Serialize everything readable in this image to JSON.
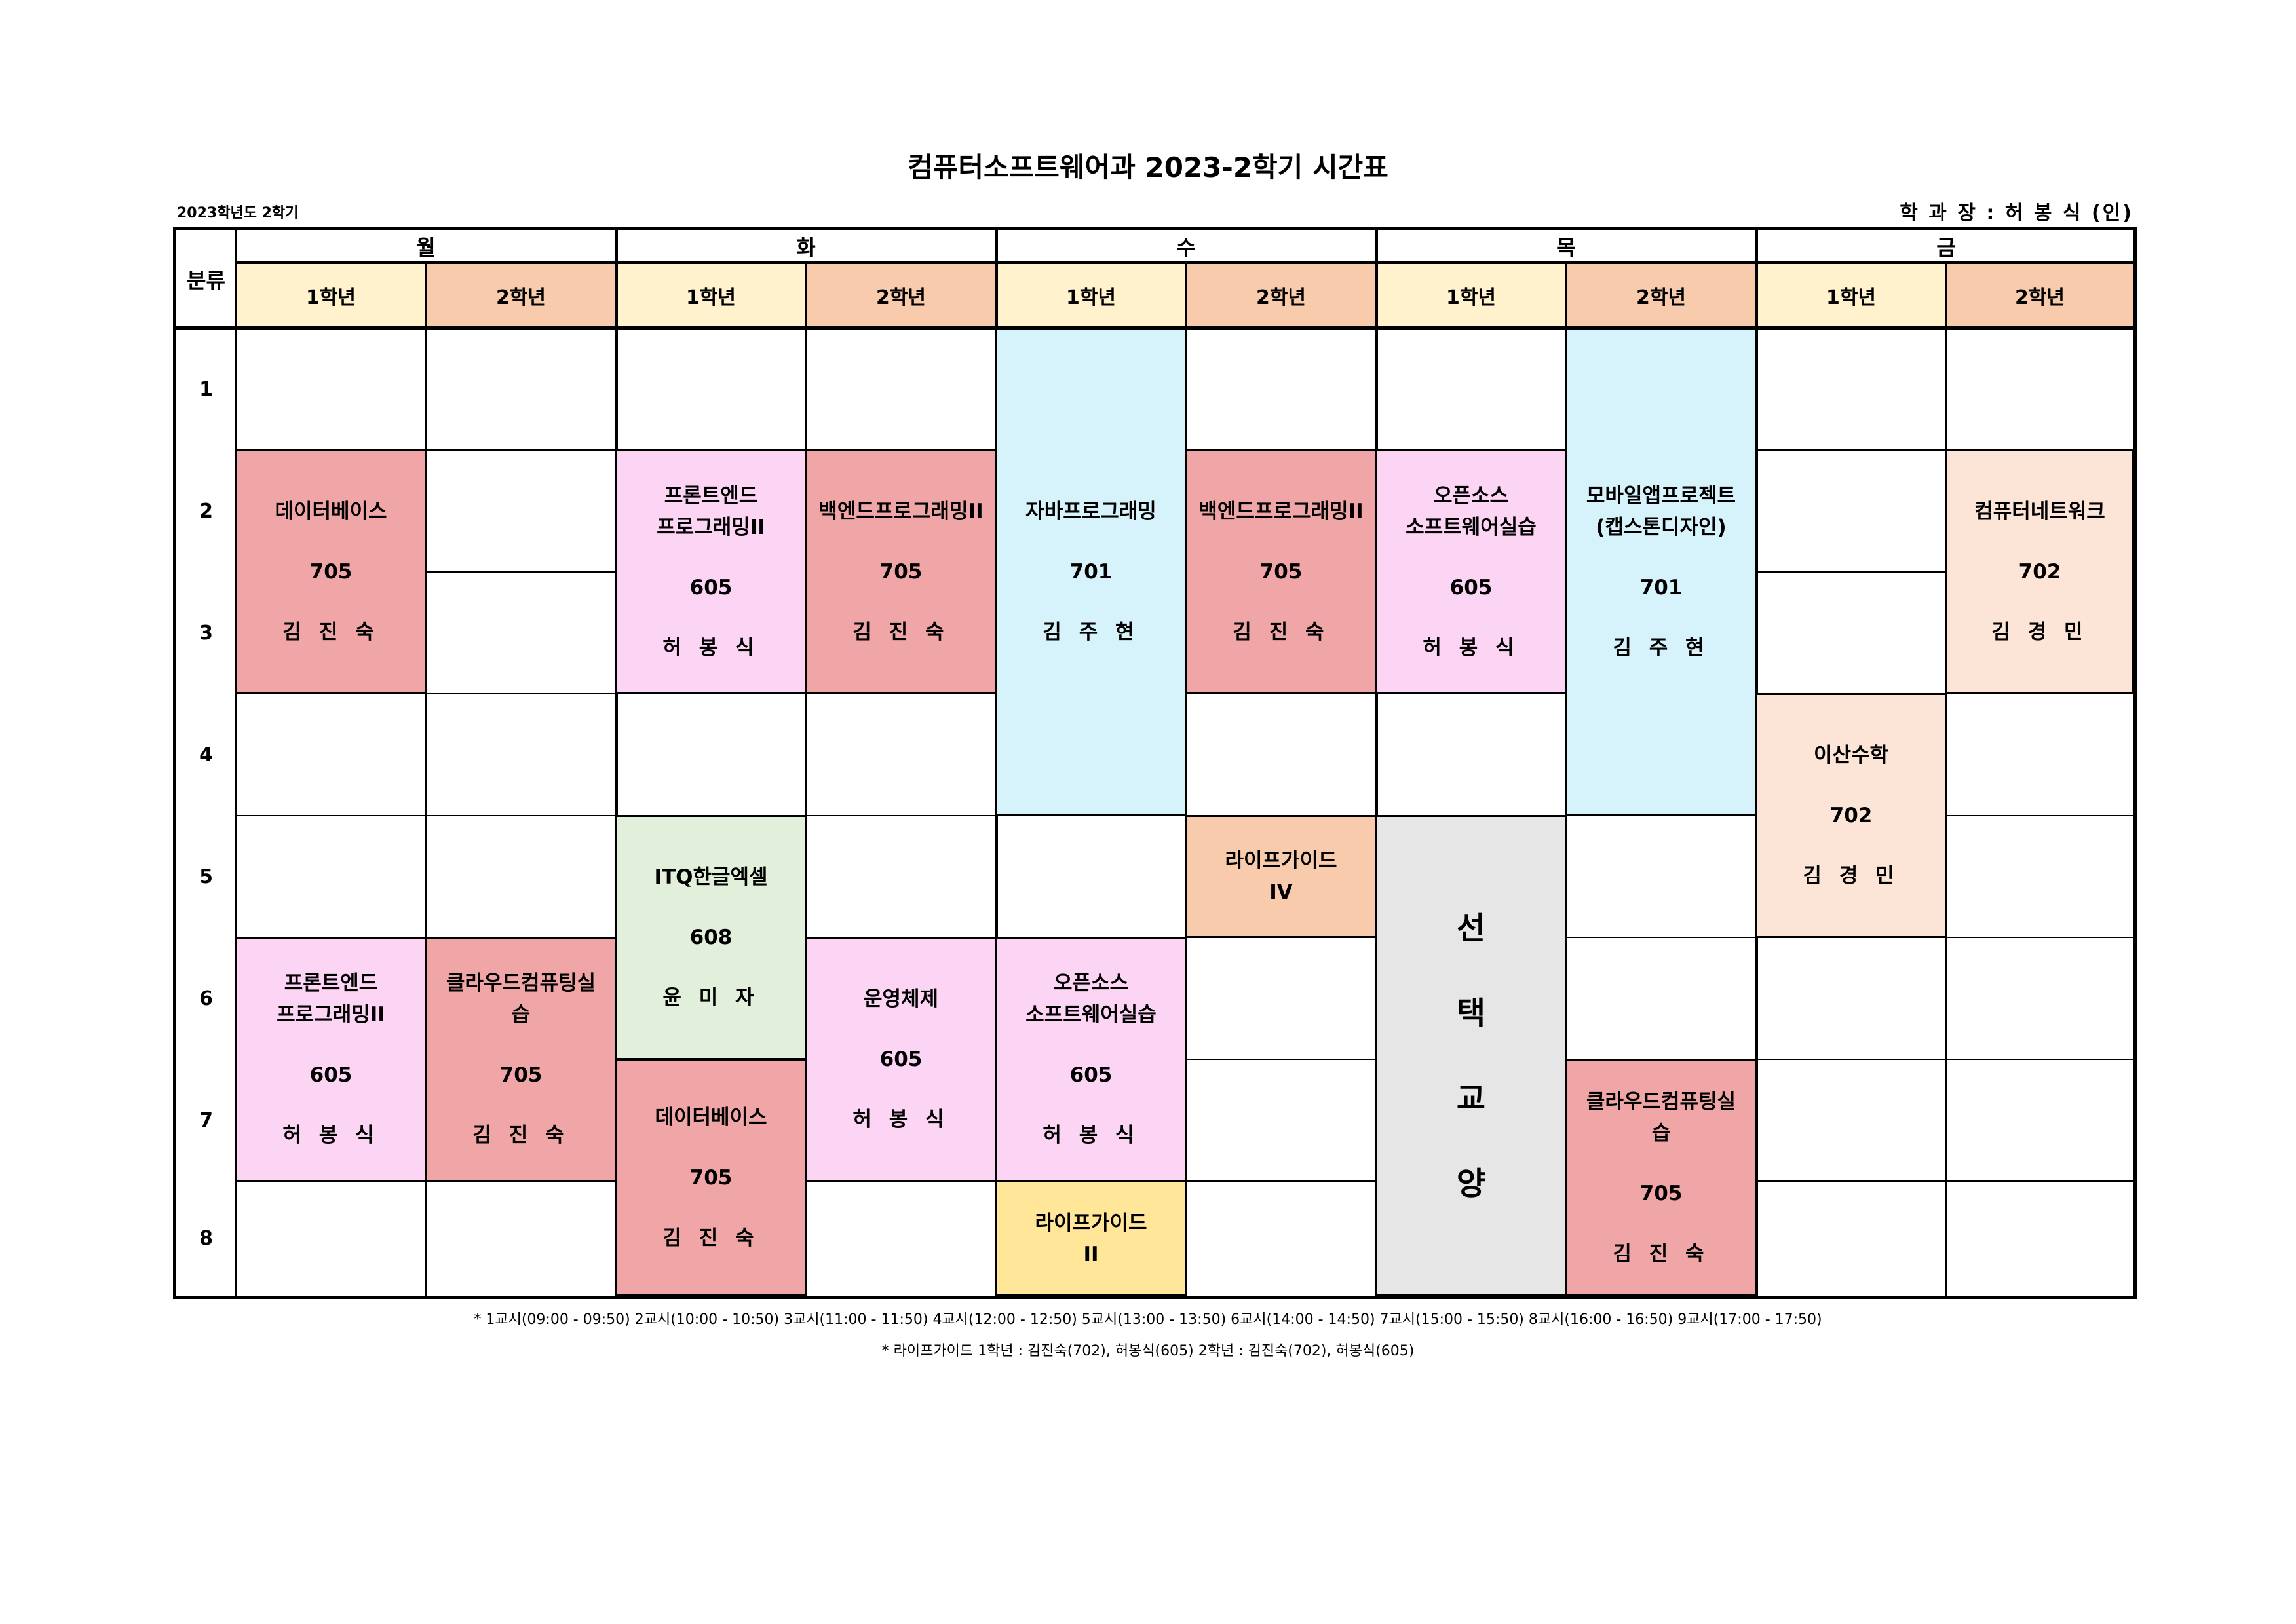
{
  "title": "컴퓨터소프트웨어과 2023-2학기 시간표",
  "semester_label": "2023학년도 2학기",
  "approver": "학 과 장 : 허 봉 식 (인)",
  "corner_label": "분류",
  "days": [
    "월",
    "화",
    "수",
    "목",
    "금"
  ],
  "year_labels": [
    "1학년",
    "2학년"
  ],
  "periods": [
    "1",
    "2",
    "3",
    "4",
    "5",
    "6",
    "7",
    "8"
  ],
  "classes": [
    {
      "name": "데이터베이스",
      "room": "705",
      "prof": "김 진 숙"
    },
    {
      "name": "프론트엔드\n프로그래밍II",
      "room": "605",
      "prof": "허 봉 식"
    },
    {
      "name": "클라우드컴퓨팅실\n습",
      "room": "705",
      "prof": "김 진 숙"
    },
    {
      "name": "프론트엔드\n프로그래밍II",
      "room": "605",
      "prof": "허 봉 식"
    },
    {
      "name": "ITQ한글엑셀",
      "room": "608",
      "prof": "윤 미 자"
    },
    {
      "name": "데이터베이스",
      "room": "705",
      "prof": "김 진 숙"
    },
    {
      "name": "백엔드프로그래밍II",
      "room": "705",
      "prof": "김 진 숙"
    },
    {
      "name": "운영체제",
      "room": "605",
      "prof": "허 봉 식"
    },
    {
      "name": "자바프로그래밍",
      "room": "701",
      "prof": "김 주 현"
    },
    {
      "name": "오픈소스\n소프트웨어실습",
      "room": "605",
      "prof": "허 봉 식"
    },
    {
      "name": "라이프가이드\nII",
      "room": "",
      "prof": ""
    },
    {
      "name": "백엔드프로그래밍II",
      "room": "705",
      "prof": "김 진 숙"
    },
    {
      "name": "라이프가이드\nIV",
      "room": "",
      "prof": ""
    },
    {
      "name": "오픈소스\n소프트웨어실습",
      "room": "605",
      "prof": "허 봉 식"
    },
    {
      "name": "모바일앱프로젝트\n(캡스톤디자인)",
      "room": "701",
      "prof": "김 주 현"
    },
    {
      "name": "클라우드컴퓨팅실\n습",
      "room": "705",
      "prof": "김 진 숙"
    },
    {
      "name": "이산수학",
      "room": "702",
      "prof": "김 경 민"
    },
    {
      "name": "컴퓨터네트워크",
      "room": "702",
      "prof": "김 경 민"
    }
  ],
  "elective": [
    "선",
    "택",
    "교",
    "양"
  ],
  "footnote_times": "* 1교시(09:00 - 09:50)   2교시(10:00 - 10:50)   3교시(11:00 - 11:50)   4교시(12:00 - 12:50)  5교시(13:00 - 13:50)   6교시(14:00 - 14:50)   7교시(15:00 - 15:50)   8교시(16:00 - 16:50)   9교시(17:00 - 17:50)",
  "footnote_lifeguide": "* 라이프가이드   1학년 : 김진숙(702), 허봉식(605)    2학년 :  김진숙(702), 허봉식(605)",
  "colors": {
    "database_red": "#f0a6a6",
    "pink": "#fcd5f4",
    "blue": "#d6f3fb",
    "peach": "#fce4d6",
    "orange": "#f8cbad",
    "green": "#e2efda",
    "yellow": "#ffe699",
    "gray": "#e6e6e6",
    "year1_header": "#fff2cc",
    "year2_header": "#f8cbad"
  }
}
